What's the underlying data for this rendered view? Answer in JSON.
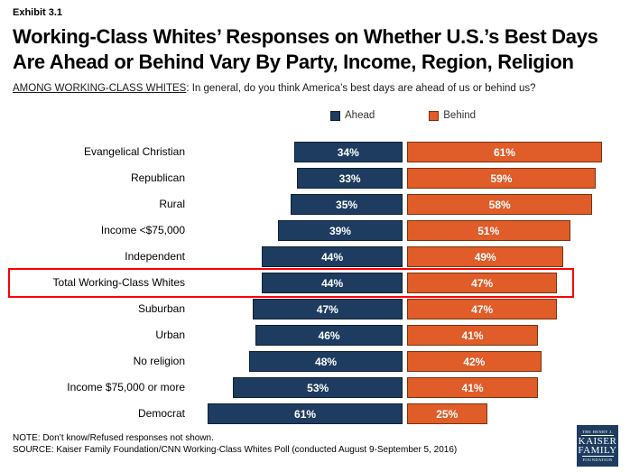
{
  "exhibit_label": "Exhibit 3.1",
  "title_lines": [
    "Working-Class Whites’ Responses on Whether U.S.’s Best Days",
    "Are Ahead or Behind Vary By Party, Income, Region, Religion"
  ],
  "subtitle": {
    "lead": "AMONG WORKING-CLASS WHITES",
    "rest": ": In general, do you think America’s best days are ahead of us or behind us?"
  },
  "chart_data": {
    "type": "bar",
    "orientation": "horizontal",
    "value_suffix": "%",
    "legend_position": "top",
    "categories": [
      "Evangelical Christian",
      "Republican",
      "Rural",
      "Income <$75,000",
      "Independent",
      "Total Working-Class Whites",
      "Suburban",
      "Urban",
      "No religion",
      "Income $75,000 or more",
      "Democrat"
    ],
    "series": [
      {
        "name": "Ahead",
        "color": "#1d3c5f",
        "border_color": "#0d2137",
        "values": [
          34,
          33,
          35,
          39,
          44,
          44,
          47,
          46,
          48,
          53,
          61
        ]
      },
      {
        "name": "Behind",
        "color": "#e05c28",
        "border_color": "#7a330d",
        "values": [
          61,
          59,
          58,
          51,
          49,
          47,
          47,
          41,
          42,
          41,
          25
        ]
      }
    ],
    "highlighted_category": "Total Working-Class Whites",
    "highlight_color": "#fd0000",
    "xlim": [
      0,
      100
    ]
  },
  "note": "NOTE: Don’t know/Refused responses not shown.",
  "source": "SOURCE: Kaiser Family Foundation/CNN Working-Class Whites Poll (conducted August 9-September 5, 2016)",
  "logo": {
    "line1": "THE HENRY J.",
    "line2": "KAISER",
    "line3": "FAMILY",
    "line4": "FOUNDATION"
  }
}
